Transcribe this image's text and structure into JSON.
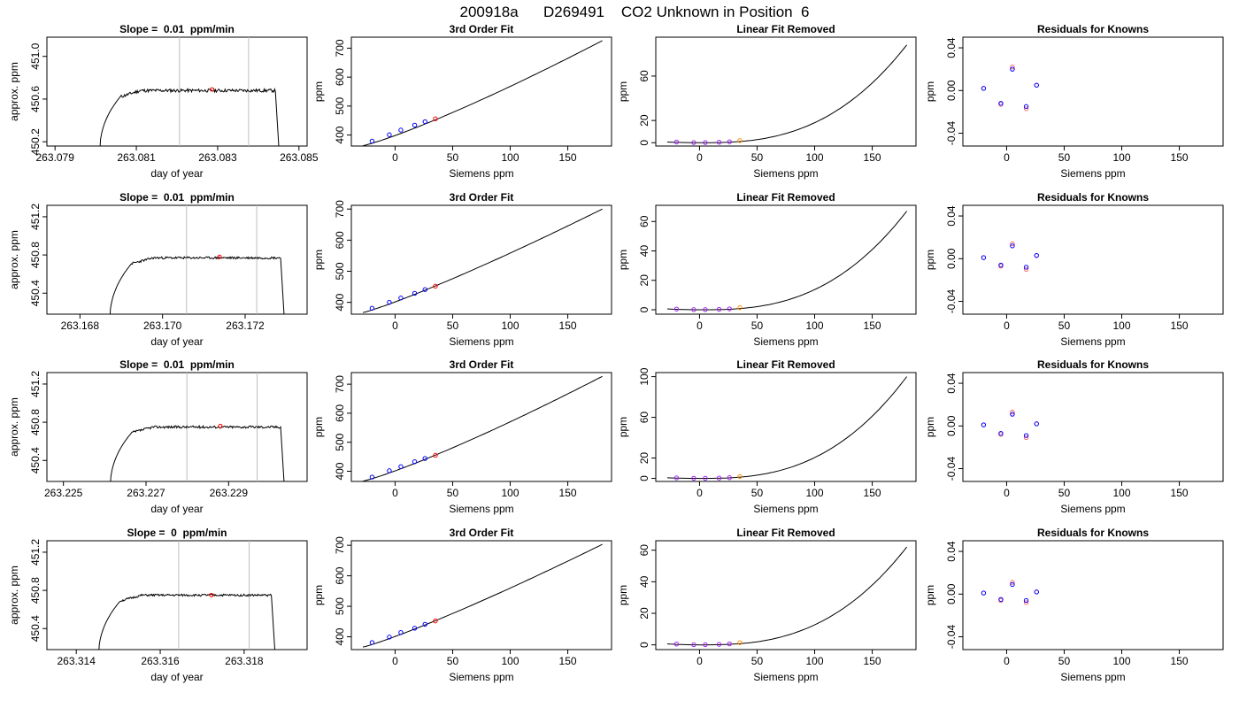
{
  "figure_title": "200918a      D269491    CO2 Unknown in Position  6",
  "colors": {
    "trace": "#000000",
    "marker_red": "#ff0000",
    "marker_blue": "#0000ff",
    "marker_purple": "#a020f0",
    "marker_orange": "#ff8c00",
    "window_line": "#bebebe"
  },
  "chart_data": [
    {
      "type": "line",
      "title": "Slope =  0.01  ppm/min",
      "xlabel": "day of year",
      "ylabel": "approx. ppm",
      "xlim": [
        263.0788,
        263.0852
      ],
      "ylim": [
        450.16,
        451.18
      ],
      "xticks": [
        263.079,
        263.081,
        263.083,
        263.085
      ],
      "xticklabels": [
        "263.079",
        "263.081",
        "263.083",
        "263.085"
      ],
      "yticks": [
        450.2,
        450.6,
        451.0
      ],
      "yticklabels": [
        "450.2",
        "450.6",
        "451.0"
      ],
      "vlines": [
        263.08206,
        263.08376
      ],
      "trace": {
        "x_start": 263.0801,
        "x_rise_end": 263.0806,
        "x_plateau_end": 263.08442,
        "x_drop": 263.08452,
        "y_low": 450.1,
        "y_plateau": 450.68,
        "y_end": 450.05,
        "noise": 0.015,
        "seed": 11
      },
      "marker": {
        "x": 263.08286,
        "y": 450.69
      }
    },
    {
      "type": "scatter",
      "title": "3rd Order Fit",
      "xlabel": "Siemens ppm",
      "ylabel": "ppm",
      "xlim": [
        -38,
        188
      ],
      "ylim": [
        362,
        738
      ],
      "xticks": [
        0,
        50,
        100,
        150
      ],
      "xticklabels": [
        "0",
        "50",
        "100",
        "150"
      ],
      "yticks": [
        400,
        500,
        600,
        700
      ],
      "yticklabels": [
        "400",
        "500",
        "600",
        "700"
      ],
      "knowns": {
        "x": [
          -20,
          -5,
          5,
          17,
          26
        ],
        "y": [
          379,
          401,
          417,
          434,
          446
        ]
      },
      "unknown": {
        "x": 35,
        "y": 456
      },
      "curve": {
        "x0": -28,
        "x1": 180,
        "y0": 363,
        "y1": 726,
        "exp": 1.28
      }
    },
    {
      "type": "scatter",
      "title": "Linear Fit Removed",
      "xlabel": "Siemens ppm",
      "ylabel": "ppm",
      "xlim": [
        -38,
        188
      ],
      "ylim": [
        -3,
        95
      ],
      "xticks": [
        0,
        50,
        100,
        150
      ],
      "xticklabels": [
        "0",
        "50",
        "100",
        "150"
      ],
      "yticks": [
        0,
        20,
        60
      ],
      "yticklabels": [
        "0",
        "20",
        "60"
      ],
      "knowns": {
        "x": [
          -20,
          -5,
          5,
          17,
          26
        ],
        "y": [
          0.6,
          0.1,
          0.1,
          0.4,
          0.8
        ]
      },
      "unknown": {
        "x": 35,
        "y": 1.9
      },
      "curve": {
        "x0": -28,
        "x1": 180,
        "ymin": 0,
        "ymax": 88,
        "exp": 2.7
      }
    },
    {
      "type": "scatter",
      "title": "Residuals for Knowns",
      "xlabel": "Siemens ppm",
      "ylabel": "ppm",
      "xlim": [
        -38,
        188
      ],
      "ylim": [
        -0.052,
        0.05
      ],
      "xticks": [
        0,
        50,
        100,
        150
      ],
      "xticklabels": [
        "0",
        "50",
        "100",
        "150"
      ],
      "yticks": [
        -0.04,
        0.0,
        0.04
      ],
      "yticklabels": [
        "-0.04",
        "0.00",
        "0.04"
      ],
      "points": {
        "x": [
          -20,
          -5,
          5,
          17,
          26
        ],
        "y": [
          0.002,
          -0.012,
          0.02,
          -0.015,
          0.005
        ],
        "y_alt": [
          0.002,
          -0.013,
          0.022,
          -0.017,
          0.005
        ]
      }
    },
    {
      "type": "line",
      "title": "Slope =  0.01  ppm/min",
      "xlabel": "day of year",
      "ylabel": "approx. ppm",
      "xlim": [
        263.1672,
        263.1735
      ],
      "ylim": [
        450.18,
        451.32
      ],
      "xticks": [
        263.168,
        263.17,
        263.172
      ],
      "xticklabels": [
        "263.168",
        "263.170",
        "263.172"
      ],
      "yticks": [
        450.4,
        450.8,
        451.2
      ],
      "yticklabels": [
        "450.4",
        "450.8",
        "451.2"
      ],
      "vlines": [
        263.17058,
        263.17228
      ],
      "trace": {
        "x_start": 263.16872,
        "x_rise_end": 263.16925,
        "x_plateau_end": 263.17286,
        "x_drop": 263.17296,
        "y_low": 450.1,
        "y_plateau": 450.77,
        "y_end": 450.05,
        "noise": 0.012,
        "seed": 23
      },
      "marker": {
        "x": 263.17138,
        "y": 450.78
      }
    },
    {
      "type": "scatter",
      "title": "3rd Order Fit",
      "xlabel": "Siemens ppm",
      "ylabel": "ppm",
      "xlim": [
        -38,
        188
      ],
      "ylim": [
        362,
        712
      ],
      "xticks": [
        0,
        50,
        100,
        150
      ],
      "xticklabels": [
        "0",
        "50",
        "100",
        "150"
      ],
      "yticks": [
        400,
        500,
        600,
        700
      ],
      "yticklabels": [
        "400",
        "500",
        "600",
        "700"
      ],
      "knowns": {
        "x": [
          -20,
          -5,
          5,
          17,
          26
        ],
        "y": [
          381,
          400,
          414,
          429,
          441
        ]
      },
      "unknown": {
        "x": 35,
        "y": 452
      },
      "curve": {
        "x0": -28,
        "x1": 180,
        "y0": 367,
        "y1": 700,
        "exp": 1.22
      }
    },
    {
      "type": "scatter",
      "title": "Linear Fit Removed",
      "xlabel": "Siemens ppm",
      "ylabel": "ppm",
      "xlim": [
        -38,
        188
      ],
      "ylim": [
        -3,
        71
      ],
      "xticks": [
        0,
        50,
        100,
        150
      ],
      "xticklabels": [
        "0",
        "50",
        "100",
        "150"
      ],
      "yticks": [
        0,
        20,
        40,
        60
      ],
      "yticklabels": [
        "0",
        "20",
        "40",
        "60"
      ],
      "knowns": {
        "x": [
          -20,
          -5,
          5,
          17,
          26
        ],
        "y": [
          0.5,
          0.1,
          0.1,
          0.3,
          0.6
        ]
      },
      "unknown": {
        "x": 35,
        "y": 1.4
      },
      "curve": {
        "x0": -28,
        "x1": 180,
        "ymin": 0,
        "ymax": 67,
        "exp": 2.7
      }
    },
    {
      "type": "scatter",
      "title": "Residuals for Knowns",
      "xlabel": "Siemens ppm",
      "ylabel": "ppm",
      "xlim": [
        -38,
        188
      ],
      "ylim": [
        -0.052,
        0.05
      ],
      "xticks": [
        0,
        50,
        100,
        150
      ],
      "xticklabels": [
        "0",
        "50",
        "100",
        "150"
      ],
      "yticks": [
        -0.04,
        0.0,
        0.04
      ],
      "yticklabels": [
        "-0.04",
        "0.00",
        "0.04"
      ],
      "points": {
        "x": [
          -20,
          -5,
          5,
          17,
          26
        ],
        "y": [
          0.001,
          -0.006,
          0.012,
          -0.008,
          0.003
        ],
        "y_alt": [
          0.001,
          -0.007,
          0.014,
          -0.01,
          0.003
        ]
      }
    },
    {
      "type": "line",
      "title": "Slope =  0.01  ppm/min",
      "xlabel": "day of year",
      "ylabel": "approx. ppm",
      "xlim": [
        263.2246,
        263.2309
      ],
      "ylim": [
        450.18,
        451.32
      ],
      "xticks": [
        263.225,
        263.227,
        263.229
      ],
      "xticklabels": [
        "263.225",
        "263.227",
        "263.229"
      ],
      "yticks": [
        450.4,
        450.8,
        451.2
      ],
      "yticklabels": [
        "450.4",
        "450.8",
        "451.2"
      ],
      "vlines": [
        263.22799,
        263.22969
      ],
      "trace": {
        "x_start": 263.22613,
        "x_rise_end": 263.22665,
        "x_plateau_end": 263.23026,
        "x_drop": 263.23036,
        "y_low": 450.1,
        "y_plateau": 450.75,
        "y_end": 450.05,
        "noise": 0.013,
        "seed": 37
      },
      "marker": {
        "x": 263.2288,
        "y": 450.76
      }
    },
    {
      "type": "scatter",
      "title": "3rd Order Fit",
      "xlabel": "Siemens ppm",
      "ylabel": "ppm",
      "xlim": [
        -38,
        188
      ],
      "ylim": [
        365,
        740
      ],
      "xticks": [
        0,
        50,
        100,
        150
      ],
      "xticklabels": [
        "0",
        "50",
        "100",
        "150"
      ],
      "yticks": [
        400,
        500,
        600,
        700
      ],
      "yticklabels": [
        "400",
        "500",
        "600",
        "700"
      ],
      "knowns": {
        "x": [
          -20,
          -5,
          5,
          17,
          26
        ],
        "y": [
          380,
          402,
          416,
          433,
          444
        ]
      },
      "unknown": {
        "x": 35,
        "y": 455
      },
      "curve": {
        "x0": -28,
        "x1": 180,
        "y0": 366,
        "y1": 727,
        "exp": 1.27
      }
    },
    {
      "type": "scatter",
      "title": "Linear Fit Removed",
      "xlabel": "Siemens ppm",
      "ylabel": "ppm",
      "xlim": [
        -38,
        188
      ],
      "ylim": [
        -3,
        104
      ],
      "xticks": [
        0,
        50,
        100,
        150
      ],
      "xticklabels": [
        "0",
        "50",
        "100",
        "150"
      ],
      "yticks": [
        0,
        20,
        60,
        100
      ],
      "yticklabels": [
        "0",
        "20",
        "60",
        "100"
      ],
      "knowns": {
        "x": [
          -20,
          -5,
          5,
          17,
          26
        ],
        "y": [
          0.5,
          0.1,
          0.1,
          0.3,
          0.7
        ]
      },
      "unknown": {
        "x": 35,
        "y": 1.8
      },
      "curve": {
        "x0": -28,
        "x1": 180,
        "ymin": 0,
        "ymax": 100,
        "exp": 2.7
      }
    },
    {
      "type": "scatter",
      "title": "Residuals for Knowns",
      "xlabel": "Siemens ppm",
      "ylabel": "ppm",
      "xlim": [
        -38,
        188
      ],
      "ylim": [
        -0.052,
        0.05
      ],
      "xticks": [
        0,
        50,
        100,
        150
      ],
      "xticklabels": [
        "0",
        "50",
        "100",
        "150"
      ],
      "yticks": [
        -0.04,
        0.0,
        0.04
      ],
      "yticklabels": [
        "-0.04",
        "0.00",
        "0.04"
      ],
      "points": {
        "x": [
          -20,
          -5,
          5,
          17,
          26
        ],
        "y": [
          0.001,
          -0.007,
          0.011,
          -0.009,
          0.002
        ],
        "y_alt": [
          0.001,
          -0.008,
          0.013,
          -0.011,
          0.002
        ]
      }
    },
    {
      "type": "line",
      "title": "Slope =  0  ppm/min",
      "xlabel": "day of year",
      "ylabel": "approx. ppm",
      "xlim": [
        263.3133,
        263.3195
      ],
      "ylim": [
        450.18,
        451.32
      ],
      "xticks": [
        263.314,
        263.316,
        263.318
      ],
      "xticklabels": [
        "263.314",
        "263.316",
        "263.318"
      ],
      "yticks": [
        450.4,
        450.8,
        451.2
      ],
      "yticklabels": [
        "450.4",
        "450.8",
        "451.2"
      ],
      "vlines": [
        263.31644,
        263.31812
      ],
      "trace": {
        "x_start": 263.31453,
        "x_rise_end": 263.31505,
        "x_plateau_end": 263.31865,
        "x_drop": 263.31875,
        "y_low": 450.1,
        "y_plateau": 450.75,
        "y_end": 450.05,
        "noise": 0.011,
        "seed": 51
      },
      "marker": {
        "x": 263.31722,
        "y": 450.75
      }
    },
    {
      "type": "scatter",
      "title": "3rd Order Fit",
      "xlabel": "Siemens ppm",
      "ylabel": "ppm",
      "xlim": [
        -38,
        188
      ],
      "ylim": [
        358,
        715
      ],
      "xticks": [
        0,
        50,
        100,
        150
      ],
      "xticklabels": [
        "0",
        "50",
        "100",
        "150"
      ],
      "yticks": [
        400,
        500,
        600,
        700
      ],
      "yticklabels": [
        "400",
        "500",
        "600",
        "700"
      ],
      "knowns": {
        "x": [
          -20,
          -5,
          5,
          17,
          26
        ],
        "y": [
          381,
          399,
          414,
          428,
          441
        ]
      },
      "unknown": {
        "x": 35,
        "y": 452
      },
      "curve": {
        "x0": -28,
        "x1": 180,
        "y0": 366,
        "y1": 703,
        "exp": 1.22
      }
    },
    {
      "type": "scatter",
      "title": "Linear Fit Removed",
      "xlabel": "Siemens ppm",
      "ylabel": "ppm",
      "xlim": [
        -38,
        188
      ],
      "ylim": [
        -3,
        66
      ],
      "xticks": [
        0,
        50,
        100,
        150
      ],
      "xticklabels": [
        "0",
        "50",
        "100",
        "150"
      ],
      "yticks": [
        0,
        20,
        40,
        60
      ],
      "yticklabels": [
        "0",
        "20",
        "40",
        "60"
      ],
      "knowns": {
        "x": [
          -20,
          -5,
          5,
          17,
          26
        ],
        "y": [
          0.5,
          0.1,
          0.1,
          0.3,
          0.6
        ]
      },
      "unknown": {
        "x": 35,
        "y": 1.4
      },
      "curve": {
        "x0": -28,
        "x1": 180,
        "ymin": 0,
        "ymax": 62,
        "exp": 2.7
      }
    },
    {
      "type": "scatter",
      "title": "Residuals for Knowns",
      "xlabel": "Siemens ppm",
      "ylabel": "ppm",
      "xlim": [
        -38,
        188
      ],
      "ylim": [
        -0.052,
        0.05
      ],
      "xticks": [
        0,
        50,
        100,
        150
      ],
      "xticklabels": [
        "0",
        "50",
        "100",
        "150"
      ],
      "yticks": [
        -0.04,
        0.0,
        0.04
      ],
      "yticklabels": [
        "-0.04",
        "0.00",
        "0.04"
      ],
      "points": {
        "x": [
          -20,
          -5,
          5,
          17,
          26
        ],
        "y": [
          0.001,
          -0.005,
          0.009,
          -0.006,
          0.002
        ],
        "y_alt": [
          0.001,
          -0.006,
          0.011,
          -0.008,
          0.002
        ]
      }
    }
  ]
}
